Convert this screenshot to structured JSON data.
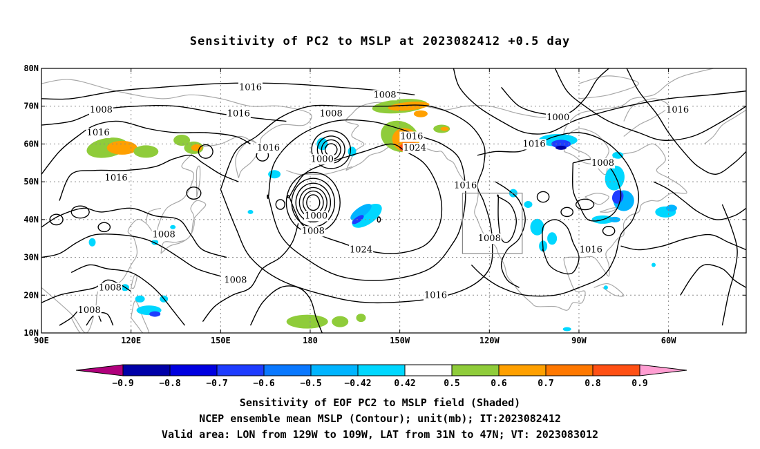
{
  "title": "Sensitivity of PC2 to MSLP at 2023082412 +0.5 day",
  "map": {
    "lat_labels": [
      "80N",
      "70N",
      "60N",
      "50N",
      "40N",
      "30N",
      "20N",
      "10N"
    ],
    "lon_labels": [
      "90E",
      "120E",
      "150E",
      "180",
      "150W",
      "120W",
      "90W",
      "60W"
    ],
    "contour_labels": [
      {
        "text": "1016",
        "lon": 160,
        "lat": 75
      },
      {
        "text": "1008",
        "lon": 205,
        "lat": 73
      },
      {
        "text": "1000",
        "lon": 263,
        "lat": 67
      },
      {
        "text": "1016",
        "lon": 303,
        "lat": 69
      },
      {
        "text": "1008",
        "lon": 110,
        "lat": 69
      },
      {
        "text": "1016",
        "lon": 109,
        "lat": 63
      },
      {
        "text": "1016",
        "lon": 156,
        "lat": 68
      },
      {
        "text": "1008",
        "lon": 187,
        "lat": 68
      },
      {
        "text": "1016",
        "lon": 214,
        "lat": 62
      },
      {
        "text": "1024",
        "lon": 215,
        "lat": 59
      },
      {
        "text": "1016",
        "lon": 166,
        "lat": 59
      },
      {
        "text": "1016",
        "lon": 255,
        "lat": 60
      },
      {
        "text": "1000",
        "lon": 184,
        "lat": 56
      },
      {
        "text": "1008",
        "lon": 278,
        "lat": 55
      },
      {
        "text": "1016",
        "lon": 115,
        "lat": 51
      },
      {
        "text": "1016",
        "lon": 232,
        "lat": 49
      },
      {
        "text": "1000",
        "lon": 182,
        "lat": 41
      },
      {
        "text": "1008",
        "lon": 181,
        "lat": 37
      },
      {
        "text": "1008",
        "lon": 131,
        "lat": 36
      },
      {
        "text": "1008",
        "lon": 240,
        "lat": 35
      },
      {
        "text": "1024",
        "lon": 197,
        "lat": 32
      },
      {
        "text": "1016",
        "lon": 274,
        "lat": 32
      },
      {
        "text": "1008",
        "lon": 155,
        "lat": 24
      },
      {
        "text": "1008",
        "lon": 113,
        "lat": 22
      },
      {
        "text": "1016",
        "lon": 222,
        "lat": 20
      },
      {
        "text": "1008",
        "lon": 106,
        "lat": 16
      }
    ]
  },
  "colorbar": {
    "colors": [
      "#b0007c",
      "#0000a8",
      "#0000e0",
      "#1e3cff",
      "#0a78ff",
      "#00b4ff",
      "#00d7ff",
      "#ffffff",
      "#8fcc3a",
      "#ffa000",
      "#ff7800",
      "#ff5014",
      "#ff2800",
      "#ff0000",
      "#ff9ed2"
    ],
    "labels": [
      "−0.9",
      "−0.8",
      "−0.7",
      "−0.6",
      "−0.5",
      "−0.42",
      "0.42",
      "0.5",
      "0.6",
      "0.7",
      "0.8",
      "0.9"
    ]
  },
  "captions": {
    "line1": "Sensitivity of EOF PC2 to MSLP field (Shaded)",
    "line2": "NCEP ensemble mean MSLP (Contour); unit(mb); IT:2023082412",
    "line3": "Valid area: LON from 129W to 109W, LAT from 31N to 47N; VT: 2023083012"
  }
}
